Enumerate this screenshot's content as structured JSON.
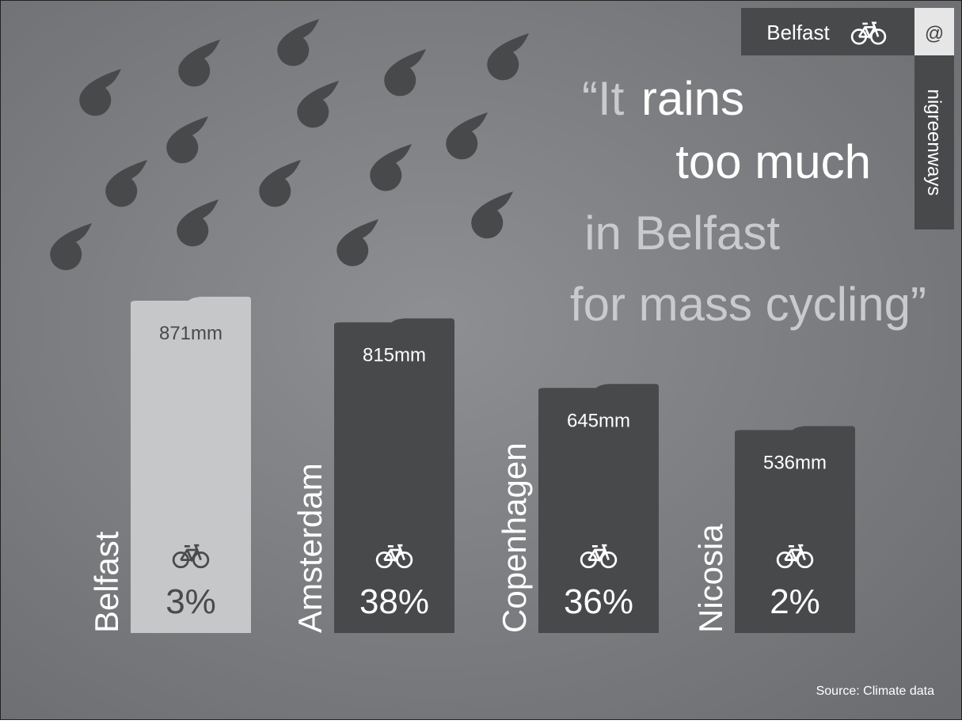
{
  "chart_data": {
    "type": "bar",
    "title_lines": [
      "“It",
      "rains",
      "too much",
      "in Belfast",
      "for mass cycling”"
    ],
    "categories": [
      "Belfast",
      "Amsterdam",
      "Copenhagen",
      "Nicosia"
    ],
    "values": [
      871,
      815,
      645,
      536
    ],
    "value_labels": [
      "871mm",
      "815mm",
      "645mm",
      "536mm"
    ],
    "colors": [
      "#c6c7c9",
      "#48494b",
      "#48494b",
      "#48494b"
    ],
    "cycling_share": {
      "values": [
        3,
        38,
        36,
        2
      ],
      "value_labels": [
        "3%",
        "38%",
        "36%",
        "2%"
      ]
    },
    "badge": {
      "city": "Belfast",
      "at": "@",
      "handle": "nigreenways"
    },
    "source": "Source: Climate data"
  }
}
